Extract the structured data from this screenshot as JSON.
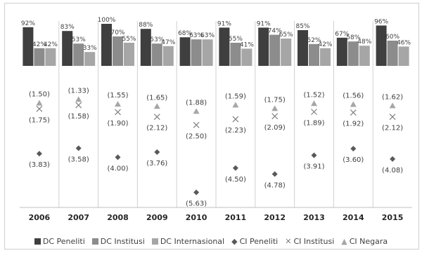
{
  "chart_data": {
    "type": "bar",
    "categories": [
      "2006",
      "2007",
      "2008",
      "2009",
      "2010",
      "2011",
      "2012",
      "2013",
      "2014",
      "2015"
    ],
    "bar_series": [
      {
        "name": "DC Peneliti",
        "color": "#3f3f3f",
        "values": [
          92,
          83,
          100,
          88,
          68,
          91,
          91,
          85,
          67,
          96
        ],
        "labels": [
          "92%",
          "83%",
          "100%",
          "88%",
          "68%",
          "91%",
          "91%",
          "85%",
          "67%",
          "96%"
        ]
      },
      {
        "name": "DC Institusi",
        "color": "#8c8c8c",
        "values": [
          42,
          53,
          70,
          53,
          63,
          55,
          74,
          52,
          58,
          60
        ],
        "labels": [
          "42%",
          "53%",
          "70%",
          "53%",
          "63%",
          "55%",
          "74%",
          "52%",
          "58%",
          "60%"
        ]
      },
      {
        "name": "DC Internasional",
        "color": "#a6a6a6",
        "values": [
          42,
          33,
          55,
          47,
          63,
          41,
          65,
          42,
          48,
          46
        ],
        "labels": [
          "42%",
          "33%",
          "55%",
          "47%",
          "63%",
          "41%",
          "65%",
          "42%",
          "48%",
          "46%"
        ]
      }
    ],
    "marker_series": [
      {
        "name": "CI Peneliti",
        "marker": "diamond",
        "color": "#595959",
        "values": [
          -3.83,
          -3.58,
          -4.0,
          -3.76,
          -5.63,
          -4.5,
          -4.78,
          -3.91,
          -3.6,
          -4.08
        ],
        "labels": [
          "(3.83)",
          "(3.58)",
          "(4.00)",
          "(3.76)",
          "(5.63)",
          "(4.50)",
          "(4.78)",
          "(3.91)",
          "(3.60)",
          "(4.08)"
        ]
      },
      {
        "name": "CI Institusi",
        "marker": "x",
        "color": "#7f7f7f",
        "values": [
          -1.75,
          -1.58,
          -1.9,
          -2.12,
          -2.5,
          -2.23,
          -2.09,
          -1.89,
          -1.92,
          -2.12
        ],
        "labels": [
          "(1.75)",
          "(1.58)",
          "(1.90)",
          "(2.12)",
          "(2.50)",
          "(2.23)",
          "(2.09)",
          "(1.89)",
          "(1.92)",
          "(2.12)"
        ]
      },
      {
        "name": "CI Negara",
        "marker": "triangle",
        "color": "#a6a6a6",
        "values": [
          -1.5,
          -1.33,
          -1.55,
          -1.65,
          -1.88,
          -1.59,
          -1.75,
          -1.52,
          -1.56,
          -1.62
        ],
        "labels": [
          "(1.50)",
          "(1.33)",
          "(1.55)",
          "(1.65)",
          "(1.88)",
          "(1.59)",
          "(1.75)",
          "(1.52)",
          "(1.56)",
          "(1.62)"
        ]
      }
    ],
    "bar_ylim": [
      0,
      100
    ],
    "marker_ylim": [
      -6.2,
      -0.6
    ],
    "legend_position": "bottom",
    "grid": false
  },
  "legend": [
    {
      "label": "DC Peneliti",
      "icon": "square",
      "color": "#3f3f3f"
    },
    {
      "label": "DC Institusi",
      "icon": "square",
      "color": "#8c8c8c"
    },
    {
      "label": "DC Internasional",
      "icon": "square",
      "color": "#a6a6a6"
    },
    {
      "label": "CI Peneliti",
      "icon": "diamond",
      "color": "#595959"
    },
    {
      "label": "CI Institusi",
      "icon": "x",
      "color": "#7f7f7f"
    },
    {
      "label": "CI Negara",
      "icon": "triangle",
      "color": "#a6a6a6"
    }
  ]
}
